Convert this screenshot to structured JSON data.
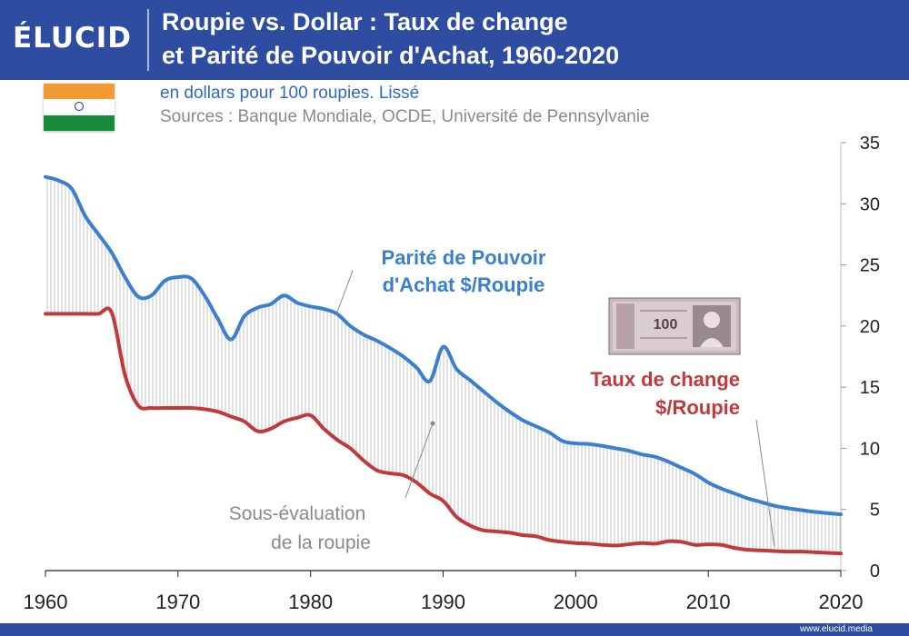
{
  "header": {
    "logo": "ÉLUCID",
    "title_line1": "Roupie vs. Dollar : Taux de change",
    "title_line2": "et Parité de Pouvoir d'Achat, 1960-2020"
  },
  "subtitle": "en dollars pour 100 roupies. Lissé",
  "sources": "Sources : Banque Mondiale, OCDE, Université de Pennsylvanie",
  "footer_url": "www.elucid.media",
  "colors": {
    "header": "#2e4da1",
    "ppp": "#3a7fd0",
    "exchange": "#c0393b",
    "fill_lines": "#b8b8b8",
    "annotation": "#8a8a8a"
  },
  "chart_data": {
    "type": "line",
    "x": [
      1960,
      1961,
      1962,
      1963,
      1964,
      1965,
      1966,
      1967,
      1968,
      1969,
      1970,
      1971,
      1972,
      1973,
      1974,
      1975,
      1976,
      1977,
      1978,
      1979,
      1980,
      1981,
      1982,
      1983,
      1984,
      1985,
      1986,
      1987,
      1988,
      1989,
      1990,
      1991,
      1992,
      1993,
      1994,
      1995,
      1996,
      1997,
      1998,
      1999,
      2000,
      2001,
      2002,
      2003,
      2004,
      2005,
      2006,
      2007,
      2008,
      2009,
      2010,
      2011,
      2012,
      2013,
      2014,
      2015,
      2016,
      2017,
      2018,
      2019,
      2020
    ],
    "series": [
      {
        "name": "Parité de Pouvoir d'Achat $/Roupie",
        "values": [
          32.2,
          31.9,
          31.2,
          29.0,
          27.5,
          26.0,
          24.0,
          22.4,
          22.5,
          23.7,
          24.0,
          23.9,
          22.5,
          20.6,
          18.9,
          20.8,
          21.5,
          21.8,
          22.5,
          21.9,
          21.6,
          21.4,
          21.0,
          20.0,
          19.3,
          18.8,
          18.2,
          17.5,
          16.6,
          15.5,
          18.3,
          16.5,
          15.6,
          14.7,
          13.8,
          13.0,
          12.3,
          11.8,
          11.3,
          10.6,
          10.4,
          10.35,
          10.2,
          10.0,
          9.8,
          9.5,
          9.3,
          8.9,
          8.4,
          7.9,
          7.2,
          6.7,
          6.3,
          5.9,
          5.6,
          5.3,
          5.1,
          4.95,
          4.8,
          4.7,
          4.6
        ]
      },
      {
        "name": "Taux de change $/Roupie",
        "values": [
          21.0,
          21.0,
          21.0,
          21.0,
          21.0,
          21.1,
          16.0,
          13.5,
          13.3,
          13.3,
          13.3,
          13.3,
          13.2,
          13.0,
          12.6,
          12.2,
          11.4,
          11.6,
          12.2,
          12.5,
          12.7,
          11.6,
          10.7,
          10.0,
          9.0,
          8.2,
          7.95,
          7.8,
          7.2,
          6.3,
          5.7,
          4.4,
          3.7,
          3.3,
          3.2,
          3.1,
          2.9,
          2.8,
          2.5,
          2.35,
          2.25,
          2.2,
          2.1,
          2.05,
          2.15,
          2.25,
          2.2,
          2.4,
          2.35,
          2.1,
          2.15,
          2.1,
          1.85,
          1.7,
          1.65,
          1.6,
          1.55,
          1.55,
          1.5,
          1.45,
          1.4
        ]
      }
    ],
    "xticks": [
      1960,
      1970,
      1980,
      1990,
      2000,
      2010,
      2020
    ],
    "yticks": [
      0,
      5,
      10,
      15,
      20,
      25,
      30,
      35
    ],
    "ylim": [
      0,
      35
    ],
    "annotations": {
      "ppp_label_line1": "Parité de Pouvoir",
      "ppp_label_line2": "d'Achat $/Roupie",
      "fx_label_line1": "Taux de change",
      "fx_label_line2": "$/Roupie",
      "gap_label_line1": "Sous-évaluation",
      "gap_label_line2": "de la roupie"
    },
    "banknote_text": "100"
  }
}
